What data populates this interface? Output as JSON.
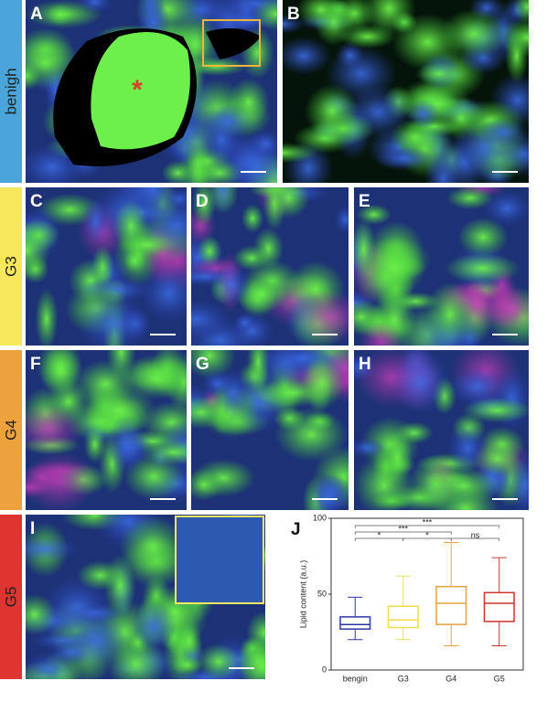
{
  "rows": [
    {
      "label": "benigh",
      "color": "#4aa6da"
    },
    {
      "label": "G3",
      "color": "#f6e75c"
    },
    {
      "label": "G4",
      "color": "#eea23e"
    },
    {
      "label": "G5",
      "color": "#de3530"
    }
  ],
  "panels": [
    {
      "letter": "A",
      "annotation": "*"
    },
    {
      "letter": "B"
    },
    {
      "letter": "C"
    },
    {
      "letter": "D"
    },
    {
      "letter": "E"
    },
    {
      "letter": "F"
    },
    {
      "letter": "G"
    },
    {
      "letter": "H"
    },
    {
      "letter": "I"
    }
  ],
  "chart_data": {
    "type": "box",
    "letter": "J",
    "ylabel": "Lipid content (a.u.)",
    "categories": [
      "bengin",
      "G3",
      "G4",
      "G5"
    ],
    "colors": [
      "#2a38a8",
      "#f2dc4c",
      "#e8a23e",
      "#d3312c"
    ],
    "boxes": [
      {
        "low": 20,
        "q1": 27,
        "median": 30,
        "q3": 35,
        "high": 48
      },
      {
        "low": 20,
        "q1": 28,
        "median": 33,
        "q3": 42,
        "high": 62
      },
      {
        "low": 16,
        "q1": 30,
        "median": 44,
        "q3": 55,
        "high": 84
      },
      {
        "low": 16,
        "q1": 32,
        "median": 44,
        "q3": 51,
        "high": 74
      }
    ],
    "ylim": [
      0,
      100
    ],
    "yticks": [
      0,
      50,
      100
    ],
    "comparisons": [
      {
        "label": "***"
      },
      {
        "label": "***"
      },
      {
        "label": "*"
      },
      {
        "label": "*"
      },
      {
        "label": "ns"
      }
    ]
  }
}
